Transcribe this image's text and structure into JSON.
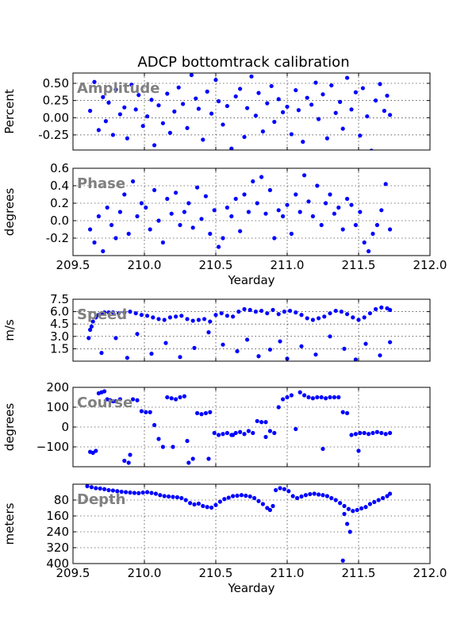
{
  "figure_title": "ADCP bottomtrack calibration",
  "colors": {
    "marker": "#0000ff",
    "panel_label": "#808080"
  },
  "chart_data": [
    {
      "type": "scatter",
      "panel_label": "Amplitude",
      "ylabel": "Percent",
      "xlabel": "",
      "xlim": [
        209.5,
        212.0
      ],
      "ylim": [
        -0.47,
        0.65
      ],
      "xticks": [
        209.5,
        210.0,
        210.5,
        211.0,
        211.5,
        212.0
      ],
      "show_xticklabels": false,
      "yticks": [
        -0.25,
        0.0,
        0.25,
        0.5
      ],
      "yticklabels": [
        "-0.25",
        "0.00",
        "0.25",
        "0.50"
      ],
      "grid": true,
      "series": [
        {
          "x": [
            209.62,
            209.65,
            209.68,
            209.71,
            209.73,
            209.75,
            209.78,
            209.8,
            209.83,
            209.86,
            209.88,
            209.91,
            209.94,
            209.96,
            209.99,
            210.02,
            210.05,
            210.07,
            210.1,
            210.13,
            210.16,
            210.18,
            210.21,
            210.24,
            210.27,
            210.3,
            210.33,
            210.36,
            210.38,
            210.41,
            210.44,
            210.47,
            210.5,
            210.52,
            210.55,
            210.58,
            210.61,
            210.64,
            210.67,
            210.7,
            210.72,
            210.75,
            210.78,
            210.8,
            210.83,
            210.86,
            210.89,
            210.91,
            210.94,
            210.97,
            211.0,
            211.03,
            211.06,
            211.08,
            211.11,
            211.14,
            211.17,
            211.2,
            211.22,
            211.25,
            211.28,
            211.31,
            211.34,
            211.37,
            211.39,
            211.42,
            211.45,
            211.48,
            211.51,
            211.53,
            211.56,
            211.59,
            211.62,
            211.65,
            211.68,
            211.7,
            211.72
          ],
          "y": [
            0.1,
            0.52,
            -0.18,
            0.3,
            -0.05,
            0.22,
            -0.25,
            0.41,
            0.05,
            0.15,
            -0.3,
            0.48,
            0.12,
            0.33,
            -0.12,
            0.02,
            0.26,
            -0.4,
            0.18,
            -0.08,
            0.35,
            -0.22,
            0.09,
            0.44,
            0.2,
            -0.15,
            0.62,
            0.28,
            0.13,
            -0.32,
            0.38,
            0.06,
            0.55,
            0.24,
            -0.1,
            0.17,
            -0.45,
            0.31,
            0.42,
            -0.28,
            0.14,
            0.6,
            0.03,
            0.36,
            -0.2,
            0.21,
            0.46,
            -0.06,
            0.27,
            0.08,
            0.16,
            -0.24,
            0.4,
            0.11,
            -0.35,
            0.29,
            0.19,
            0.51,
            -0.02,
            0.34,
            -0.3,
            0.47,
            0.07,
            0.23,
            -0.16,
            0.58,
            0.12,
            0.37,
            -0.26,
            0.43,
            0.02,
            -0.48,
            0.25,
            0.49,
            0.1,
            0.32,
            0.04
          ]
        }
      ]
    },
    {
      "type": "scatter",
      "panel_label": "Phase",
      "ylabel": "degrees",
      "xlabel": "Yearday",
      "xlim": [
        209.5,
        212.0
      ],
      "ylim": [
        -0.4,
        0.6
      ],
      "xticks": [
        209.5,
        210.0,
        210.5,
        211.0,
        211.5,
        212.0
      ],
      "xticklabels": [
        "209.5",
        "210.0",
        "210.5",
        "211.0",
        "211.5",
        "212.0"
      ],
      "show_xticklabels": true,
      "yticks": [
        -0.2,
        0.0,
        0.2,
        0.4,
        0.6
      ],
      "yticklabels": [
        "-0.2",
        "0.0",
        "0.2",
        "0.4",
        "0.6"
      ],
      "grid": true,
      "series": [
        {
          "x": [
            209.62,
            209.65,
            209.68,
            209.71,
            209.74,
            209.77,
            209.8,
            209.83,
            209.86,
            209.89,
            209.92,
            209.95,
            209.98,
            210.01,
            210.04,
            210.07,
            210.1,
            210.13,
            210.16,
            210.19,
            210.22,
            210.25,
            210.28,
            210.31,
            210.34,
            210.37,
            210.4,
            210.43,
            210.46,
            210.49,
            210.52,
            210.55,
            210.58,
            210.61,
            210.64,
            210.67,
            210.7,
            210.73,
            210.76,
            210.79,
            210.82,
            210.85,
            210.88,
            210.91,
            210.94,
            210.97,
            211.0,
            211.03,
            211.06,
            211.09,
            211.12,
            211.15,
            211.18,
            211.21,
            211.24,
            211.27,
            211.3,
            211.33,
            211.36,
            211.39,
            211.42,
            211.45,
            211.48,
            211.51,
            211.54,
            211.57,
            211.6,
            211.63,
            211.66,
            211.69,
            211.72
          ],
          "y": [
            -0.1,
            -0.25,
            0.05,
            -0.35,
            0.15,
            -0.05,
            -0.2,
            0.1,
            0.3,
            -0.15,
            0.45,
            0.05,
            0.2,
            0.15,
            -0.1,
            0.35,
            0.0,
            -0.25,
            0.25,
            0.08,
            0.32,
            -0.05,
            0.1,
            0.2,
            -0.08,
            0.38,
            0.02,
            0.28,
            -0.15,
            0.12,
            -0.3,
            -0.2,
            0.15,
            0.05,
            0.25,
            -0.12,
            0.3,
            0.1,
            0.45,
            0.2,
            0.5,
            0.08,
            0.35,
            -0.2,
            0.12,
            0.05,
            0.18,
            -0.15,
            0.3,
            0.1,
            0.52,
            0.22,
            0.05,
            0.4,
            -0.05,
            0.2,
            0.3,
            0.08,
            0.15,
            -0.1,
            0.25,
            0.18,
            -0.05,
            0.1,
            -0.25,
            -0.35,
            -0.15,
            -0.05,
            0.12,
            0.42,
            -0.1
          ]
        }
      ]
    },
    {
      "type": "scatter",
      "panel_label": "Speed",
      "ylabel": "m/s",
      "xlabel": "",
      "xlim": [
        209.5,
        212.0
      ],
      "ylim": [
        0.0,
        7.5
      ],
      "xticks": [
        209.5,
        210.0,
        210.5,
        211.0,
        211.5,
        212.0
      ],
      "show_xticklabels": false,
      "yticks": [
        1.5,
        3.0,
        4.5,
        6.0,
        7.5
      ],
      "yticklabels": [
        "1.5",
        "3.0",
        "4.5",
        "6.0",
        "7.5"
      ],
      "grid": true,
      "series": [
        {
          "x": [
            209.61,
            209.62,
            209.63,
            209.64,
            209.66,
            209.68,
            209.7,
            209.72,
            209.75,
            209.78,
            209.82,
            209.86,
            209.9,
            209.94,
            209.98,
            210.02,
            210.06,
            210.1,
            210.14,
            210.18,
            210.22,
            210.26,
            210.3,
            210.34,
            210.38,
            210.42,
            210.46,
            210.5,
            210.54,
            210.58,
            210.62,
            210.66,
            210.7,
            210.74,
            210.78,
            210.82,
            210.86,
            210.9,
            210.94,
            210.98,
            211.02,
            211.06,
            211.1,
            211.14,
            211.18,
            211.22,
            211.26,
            211.3,
            211.34,
            211.38,
            211.42,
            211.46,
            211.5,
            211.54,
            211.58,
            211.62,
            211.66,
            211.7,
            211.72,
            209.7,
            209.8,
            209.88,
            209.95,
            210.05,
            210.15,
            210.25,
            210.35,
            210.45,
            210.55,
            210.65,
            210.72,
            210.8,
            210.88,
            210.95,
            211.0,
            211.1,
            211.2,
            211.3,
            211.4,
            211.48,
            211.55,
            211.65,
            211.72
          ],
          "y": [
            2.8,
            3.8,
            4.2,
            4.8,
            5.3,
            5.6,
            5.8,
            5.9,
            5.9,
            5.9,
            5.8,
            5.9,
            6.0,
            5.8,
            5.6,
            5.5,
            5.3,
            5.1,
            5.0,
            5.3,
            5.4,
            5.5,
            5.1,
            4.9,
            5.0,
            5.1,
            4.8,
            5.6,
            5.8,
            5.5,
            5.4,
            6.0,
            6.3,
            6.2,
            6.0,
            6.1,
            5.8,
            6.2,
            5.7,
            6.0,
            6.1,
            5.9,
            5.6,
            5.2,
            5.0,
            5.2,
            5.4,
            5.8,
            6.1,
            6.0,
            5.7,
            5.3,
            5.0,
            5.3,
            5.8,
            6.3,
            6.5,
            6.4,
            6.2,
            1.0,
            2.8,
            0.4,
            3.3,
            0.9,
            2.2,
            0.5,
            1.6,
            3.5,
            2.0,
            1.2,
            2.6,
            0.6,
            1.4,
            2.4,
            0.3,
            1.8,
            0.8,
            3.0,
            1.5,
            0.2,
            2.1,
            0.7,
            2.3
          ]
        }
      ]
    },
    {
      "type": "scatter",
      "panel_label": "Course",
      "ylabel": "degrees",
      "xlabel": "",
      "xlim": [
        209.5,
        212.0
      ],
      "ylim": [
        -200,
        200
      ],
      "xticks": [
        209.5,
        210.0,
        210.5,
        211.0,
        211.5,
        212.0
      ],
      "show_xticklabels": false,
      "yticks": [
        -100,
        0,
        100,
        200
      ],
      "yticklabels": [
        "−100",
        "0",
        "100",
        "200"
      ],
      "grid": true,
      "series": [
        {
          "x": [
            209.62,
            209.64,
            209.66,
            209.68,
            209.7,
            209.72,
            209.74,
            209.76,
            209.78,
            209.8,
            209.83,
            209.86,
            209.89,
            209.92,
            209.95,
            209.98,
            210.01,
            210.04,
            210.07,
            210.1,
            210.13,
            210.16,
            210.19,
            210.22,
            210.25,
            210.28,
            210.31,
            210.34,
            210.37,
            210.4,
            210.43,
            210.46,
            210.49,
            210.52,
            210.55,
            210.58,
            210.61,
            210.64,
            210.67,
            210.7,
            210.73,
            210.76,
            210.79,
            210.82,
            210.85,
            210.88,
            210.91,
            210.94,
            210.97,
            211.0,
            211.03,
            211.06,
            211.09,
            211.12,
            211.15,
            211.18,
            211.21,
            211.24,
            211.27,
            211.3,
            211.33,
            211.36,
            211.39,
            211.42,
            211.45,
            211.48,
            211.51,
            211.54,
            211.57,
            211.6,
            211.63,
            211.66,
            211.69,
            211.72,
            209.9,
            210.2,
            210.3,
            210.45,
            210.62,
            210.85,
            211.25,
            211.5
          ],
          "y": [
            -125,
            -130,
            -120,
            170,
            175,
            180,
            140,
            135,
            130,
            130,
            140,
            -170,
            -180,
            140,
            135,
            80,
            75,
            75,
            10,
            -60,
            -100,
            150,
            145,
            140,
            150,
            155,
            -180,
            -160,
            70,
            65,
            70,
            75,
            -30,
            -40,
            -35,
            -30,
            -40,
            -30,
            -25,
            -35,
            -20,
            -30,
            30,
            25,
            25,
            -20,
            -30,
            100,
            140,
            150,
            160,
            -10,
            175,
            160,
            150,
            145,
            150,
            150,
            145,
            150,
            150,
            150,
            75,
            70,
            -40,
            -35,
            -30,
            -30,
            -35,
            -30,
            -25,
            -30,
            -35,
            -30,
            -140,
            -100,
            -70,
            -160,
            -40,
            -50,
            -110,
            -120
          ]
        }
      ]
    },
    {
      "type": "scatter",
      "panel_label": "Depth",
      "ylabel": "meters",
      "xlabel": "Yearday",
      "xlim": [
        209.5,
        212.0
      ],
      "ylim": [
        400,
        0
      ],
      "xticks": [
        209.5,
        210.0,
        210.5,
        211.0,
        211.5,
        212.0
      ],
      "xticklabels": [
        "209.5",
        "210.0",
        "210.5",
        "211.0",
        "211.5",
        "212.0"
      ],
      "show_xticklabels": true,
      "yticks": [
        80,
        160,
        240,
        320,
        400
      ],
      "yticklabels": [
        "80",
        "160",
        "240",
        "320",
        "400"
      ],
      "grid": true,
      "series": [
        {
          "x": [
            209.6,
            209.63,
            209.66,
            209.69,
            209.72,
            209.75,
            209.78,
            209.81,
            209.84,
            209.87,
            209.9,
            209.93,
            209.96,
            209.99,
            210.02,
            210.05,
            210.08,
            210.11,
            210.14,
            210.17,
            210.2,
            210.23,
            210.26,
            210.29,
            210.32,
            210.35,
            210.38,
            210.41,
            210.44,
            210.47,
            210.5,
            210.53,
            210.56,
            210.59,
            210.62,
            210.65,
            210.68,
            210.71,
            210.74,
            210.77,
            210.8,
            210.83,
            210.86,
            210.88,
            210.9,
            210.92,
            210.95,
            210.98,
            211.01,
            211.04,
            211.07,
            211.1,
            211.13,
            211.16,
            211.19,
            211.22,
            211.25,
            211.28,
            211.31,
            211.34,
            211.37,
            211.4,
            211.43,
            211.46,
            211.49,
            211.52,
            211.55,
            211.58,
            211.61,
            211.64,
            211.67,
            211.7,
            211.72,
            211.39,
            211.4,
            211.42,
            211.44
          ],
          "y": [
            10,
            15,
            20,
            22,
            25,
            30,
            32,
            35,
            38,
            40,
            42,
            44,
            45,
            42,
            40,
            44,
            48,
            55,
            60,
            62,
            64,
            66,
            70,
            80,
            95,
            102,
            98,
            110,
            115,
            118,
            105,
            88,
            75,
            68,
            60,
            58,
            55,
            58,
            62,
            70,
            85,
            100,
            120,
            130,
            110,
            30,
            20,
            25,
            35,
            60,
            70,
            62,
            55,
            50,
            48,
            52,
            55,
            60,
            70,
            80,
            95,
            110,
            125,
            135,
            130,
            122,
            115,
            100,
            90,
            80,
            70,
            60,
            48,
            385,
            150,
            200,
            240
          ]
        }
      ]
    }
  ]
}
